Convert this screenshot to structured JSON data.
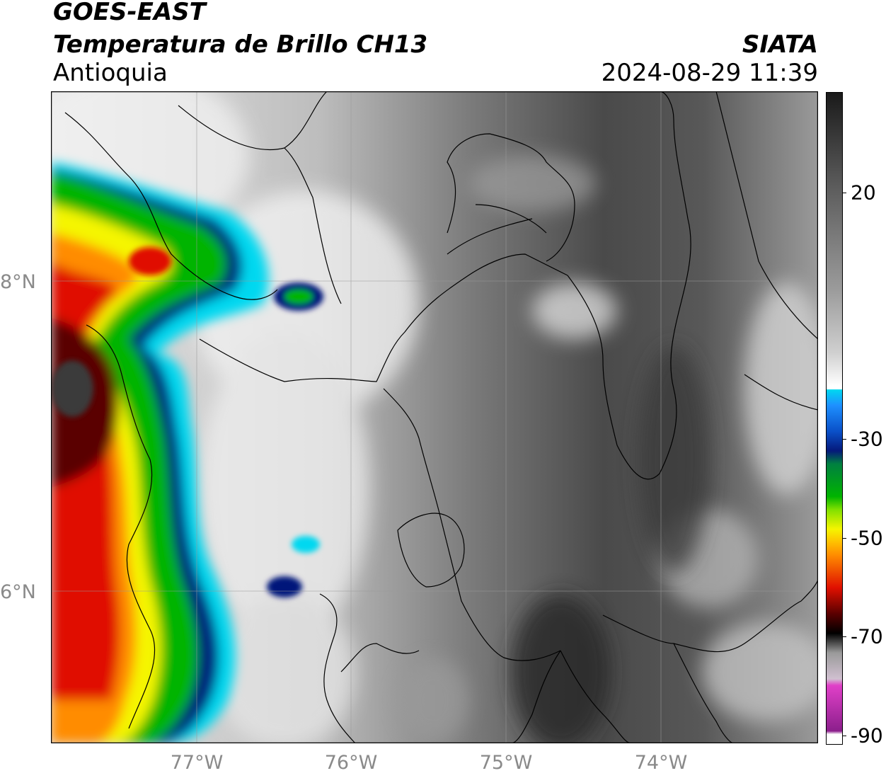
{
  "header": {
    "satellite": "GOES-EAST",
    "product": "Temperatura de Brillo CH13",
    "region": "Antioquia",
    "organization": "SIATA",
    "datetime": "2024-08-29 11:39"
  },
  "axes": {
    "lat_labels": [
      "8°N",
      "6°N"
    ],
    "lon_labels": [
      "77°W",
      "76°W",
      "75°W",
      "74°W"
    ]
  },
  "colorbar": {
    "ticks": [
      "20",
      "-30",
      "-50",
      "-70",
      "-90"
    ],
    "colors": {
      "warm_gray_top": "#1a1a1a",
      "white": "#ffffff",
      "cyan": "#00d8f0",
      "dark_blue": "#05197a",
      "green": "#00b400",
      "yellow": "#f5f500",
      "orange": "#ff8c00",
      "red": "#e01000",
      "dark_red": "#5a0000",
      "black": "#000000",
      "magenta": "#e040c8",
      "purple": "#8c1f8c"
    }
  },
  "map": {
    "colors": {
      "land_gray": "#5a5a5a",
      "cloud_white": "#f2f2f2",
      "borders": "#000000"
    }
  }
}
